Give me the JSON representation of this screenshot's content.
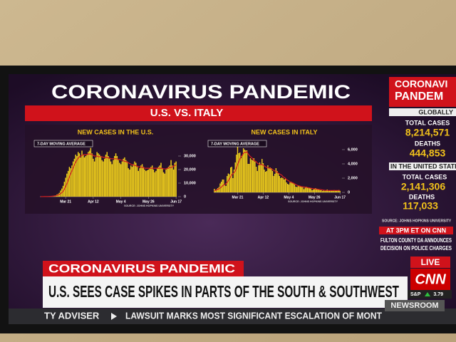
{
  "header": {
    "title": "CORONAVIRUS PANDEMIC",
    "subtitle": "U.S. VS. ITALY"
  },
  "chart_data": [
    {
      "type": "bar",
      "title": "NEW CASES IN THE U.S.",
      "note": "SOURCE: JOHNS HOPKINS UNIVERSITY",
      "series": [
        {
          "type": "bar",
          "color": "#f2d11b",
          "values": [
            20,
            30,
            40,
            60,
            80,
            100,
            150,
            200,
            300,
            400,
            500,
            700,
            900,
            1500,
            2000,
            2800,
            4500,
            6000,
            8000,
            11000,
            14000,
            17000,
            19000,
            22000,
            21000,
            23000,
            26000,
            28000,
            31000,
            30000,
            33000,
            32000,
            29000,
            34000,
            31000,
            29000,
            30000,
            31000,
            33000,
            34000,
            36000,
            32000,
            28000,
            26000,
            29000,
            33000,
            32000,
            31000,
            30000,
            27000,
            26000,
            28000,
            31000,
            33000,
            30000,
            28000,
            26000,
            24000,
            27000,
            30000,
            32000,
            30000,
            27000,
            25000,
            24000,
            26000,
            28000,
            29000,
            27000,
            26000,
            21000,
            20000,
            23000,
            22000,
            24000,
            26000,
            25000,
            22000,
            19000,
            21000,
            23000,
            24000,
            22000,
            20000,
            19000,
            19500,
            20000,
            21000,
            22000,
            23000,
            20000,
            18000,
            19000,
            21000,
            22000,
            23000,
            25000,
            21000,
            18000,
            17000,
            20000,
            21000,
            22000,
            23000,
            27000,
            23000,
            20000,
            25000,
            26000
          ]
        },
        {
          "type": "line",
          "name": "7-DAY MOVING AVERAGE",
          "color": "#d42020",
          "values": [
            10,
            20,
            30,
            50,
            70,
            90,
            110,
            150,
            200,
            280,
            380,
            500,
            650,
            900,
            1200,
            1600,
            2200,
            3000,
            4000,
            5500,
            7500,
            9500,
            12000,
            14500,
            17000,
            19000,
            21500,
            23500,
            25500,
            27000,
            28500,
            29500,
            30000,
            30500,
            31000,
            31000,
            31000,
            31000,
            31500,
            31500,
            31500,
            31000,
            30500,
            30000,
            30000,
            30000,
            29500,
            29500,
            29500,
            29500,
            29000,
            29000,
            29000,
            29000,
            28500,
            28500,
            28000,
            28000,
            28000,
            28000,
            28000,
            28000,
            27500,
            27500,
            27000,
            27000,
            26500,
            26000,
            26000,
            25500,
            25000,
            24500,
            24000,
            23500,
            23500,
            23000,
            23000,
            22500,
            22000,
            22000,
            22000,
            21500,
            21500,
            21000,
            21000,
            21000,
            21000,
            21000,
            21000,
            21000,
            21000,
            21000,
            21000,
            21000,
            21000,
            21000,
            21000,
            21000,
            20500,
            20500,
            20500,
            21000,
            21000,
            21500,
            21500,
            22000,
            22500,
            23000,
            23500
          ]
        }
      ],
      "xticks": [
        {
          "value": 20,
          "label": "Mar 21"
        },
        {
          "value": 42,
          "label": "Apr 12"
        },
        {
          "value": 64,
          "label": "May 4"
        },
        {
          "value": 86,
          "label": "May 26"
        },
        {
          "value": 108,
          "label": "Jun 17"
        }
      ],
      "ylim": [
        0,
        40000
      ],
      "yticks": [
        0,
        {
          "value": 10000,
          "label": "10,000"
        },
        {
          "value": 20000,
          "label": "20,000"
        },
        {
          "value": 30000,
          "label": "30,000"
        }
      ]
    },
    {
      "type": "bar",
      "title": "NEW CASES IN ITALY",
      "note": "SOURCE: JOHNS HOPKINS UNIVERSITY",
      "series": [
        {
          "type": "bar",
          "color": "#f2d11b",
          "values": [
            500,
            300,
            450,
            600,
            750,
            1250,
            1500,
            1800,
            1800,
            1000,
            900,
            2300,
            2650,
            2550,
            3500,
            3600,
            2000,
            3200,
            4200,
            5300,
            6500,
            5500,
            5600,
            4800,
            5200,
            6200,
            6000,
            5900,
            5900,
            4000,
            4000,
            4800,
            4600,
            4500,
            4800,
            4300,
            3600,
            3000,
            3800,
            4200,
            3900,
            4700,
            4100,
            3200,
            2900,
            3000,
            3800,
            3400,
            3500,
            3400,
            3000,
            2300,
            2600,
            3400,
            3000,
            2700,
            2300,
            2000,
            2100,
            2000,
            1800,
            1900,
            1400,
            1200,
            1100,
            1400,
            1500,
            1400,
            1300,
            1100,
            800,
            750,
            1000,
            900,
            850,
            800,
            750,
            450,
            650,
            800,
            650,
            600,
            600,
            550,
            300,
            400,
            550,
            600,
            500,
            400,
            350,
            300,
            320,
            180,
            250,
            200,
            300,
            400,
            200,
            280,
            300,
            250,
            300,
            320,
            300,
            200,
            300,
            330,
            210
          ]
        },
        {
          "type": "line",
          "name": "7-DAY MOVING AVERAGE",
          "color": "#d42020",
          "values": [
            200,
            280,
            350,
            420,
            500,
            620,
            750,
            900,
            1050,
            1100,
            1200,
            1400,
            1650,
            1900,
            2200,
            2500,
            2600,
            2800,
            3000,
            3400,
            3900,
            4300,
            4700,
            5000,
            5200,
            5500,
            5600,
            5600,
            5700,
            5400,
            5200,
            5000,
            4900,
            4700,
            4500,
            4400,
            4300,
            4100,
            4000,
            3900,
            3900,
            3900,
            3800,
            3700,
            3600,
            3500,
            3500,
            3400,
            3400,
            3300,
            3200,
            3100,
            3000,
            2900,
            2800,
            2700,
            2600,
            2500,
            2400,
            2200,
            2100,
            2000,
            1800,
            1700,
            1600,
            1500,
            1400,
            1350,
            1300,
            1200,
            1100,
            1000,
            950,
            900,
            850,
            800,
            780,
            760,
            740,
            720,
            680,
            650,
            620,
            580,
            550,
            520,
            500,
            480,
            460,
            440,
            420,
            400,
            370,
            340,
            310,
            290,
            280,
            270,
            260,
            260,
            260,
            260,
            260,
            260,
            265,
            265,
            270,
            270,
            270
          ]
        }
      ],
      "xticks": [
        {
          "value": 20,
          "label": "Mar 21"
        },
        {
          "value": 42,
          "label": "Apr 12"
        },
        {
          "value": 64,
          "label": "May 4"
        },
        {
          "value": 86,
          "label": "May 26"
        },
        {
          "value": 108,
          "label": "Jun 17"
        }
      ],
      "ylim": [
        0,
        7000
      ],
      "yticks": [
        0,
        {
          "value": 2000,
          "label": "2,000"
        },
        {
          "value": 4000,
          "label": "4,000"
        },
        {
          "value": 6000,
          "label": "6,000"
        }
      ]
    }
  ],
  "sidebar": {
    "title_lines": [
      "CORONAVI",
      "PANDEM"
    ],
    "global_heading": "GLOBALLY",
    "global_cases_label": "TOTAL CASES",
    "global_cases": "8,214,571",
    "global_deaths_label": "DEATHS",
    "global_deaths": "444,853",
    "us_heading": "IN THE UNITED STATE",
    "us_cases_label": "TOTAL CASES",
    "us_cases": "2,141,306",
    "us_deaths_label": "DEATHS",
    "us_deaths": "117,033",
    "source": "SOURCE: JOHNS HOPKINS UNIVERSITY",
    "promo_heading": "AT 3PM ET ON CNN",
    "promo_lines": [
      "FULTON COUNTY DA ANNOUNCES",
      "DECISION ON POLICE CHARGES"
    ]
  },
  "lower_third": {
    "label": "CORONAVIRUS PANDEMIC",
    "headline": "U.S. SEES CASE SPIKES IN PARTS OF THE SOUTH & SOUTHWEST",
    "live": "LIVE",
    "network": "CNN",
    "market": "S&P",
    "market_value": "3.79"
  },
  "ticker": {
    "left": "TY ADVISER",
    "story": "LAWSUIT MARKS MOST SIGNIFICANT ESCALATION OF MONT",
    "show": "NEWSROOM"
  }
}
